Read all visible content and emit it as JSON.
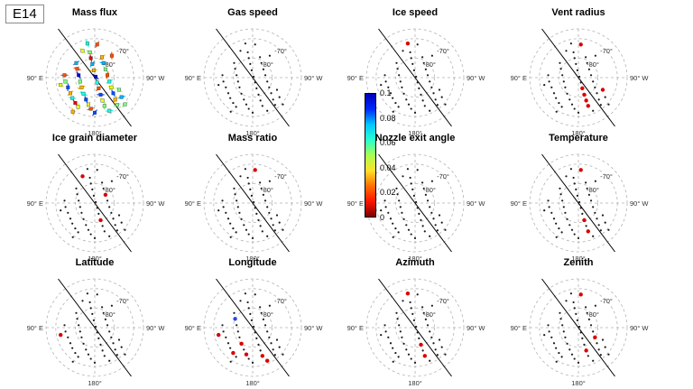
{
  "figure_label": "E14",
  "colorbar": {
    "ticks": [
      "0.1",
      "0.08",
      "0.06",
      "0.04",
      "0.02",
      "0"
    ],
    "gradient": [
      "#0000b4",
      "#0028ff",
      "#00c8ff",
      "#28ffd0",
      "#a8ff50",
      "#ffe028",
      "#ff7000",
      "#ff1400",
      "#7f0000"
    ]
  },
  "axis_labels": {
    "east": "90° E",
    "west": "90° W",
    "south": "180°",
    "lat70": "-70°",
    "lat80": "-80°"
  },
  "colors": {
    "dot": "#1a1a1a",
    "highlight": "#d90000",
    "highlight2": "#2b45e0",
    "grid": "#b3b3b3",
    "line": "#000000"
  },
  "chart_data": {
    "type": "scatter",
    "projection": "south polar azimuthal view; dashed latitude circles at -70 and -80 deg, outer dashed boundary -65 deg; 90E at left, 90W at right, 180 at bottom; solid diagonal line through the pole from upper-left to lower-right",
    "grid": "dashed gray polar grid",
    "value_range": [
      0,
      0.1
    ],
    "colorbar_ticks": [
      0,
      0.02,
      0.04,
      0.06,
      0.08,
      0.1
    ],
    "colormap": "jet reversed (0 = dark red at bottom, 0.1 = blue at top); applies to Mass flux panel markers",
    "points_xy_normalized": [
      [
        -0.62,
        -0.05
      ],
      [
        -0.6,
        0.08
      ],
      [
        -0.55,
        0.2
      ],
      [
        -0.5,
        0.32
      ],
      [
        -0.46,
        0.42
      ],
      [
        -0.4,
        0.52
      ],
      [
        -0.34,
        0.6
      ],
      [
        -0.38,
        -0.3
      ],
      [
        -0.36,
        -0.18
      ],
      [
        -0.33,
        -0.05
      ],
      [
        -0.3,
        0.08
      ],
      [
        -0.27,
        0.2
      ],
      [
        -0.23,
        0.33
      ],
      [
        -0.18,
        0.45
      ],
      [
        -0.13,
        0.55
      ],
      [
        -0.08,
        0.64
      ],
      [
        -0.1,
        -0.52
      ],
      [
        -0.08,
        -0.4
      ],
      [
        -0.05,
        -0.28
      ],
      [
        -0.02,
        -0.15
      ],
      [
        0.02,
        -0.02
      ],
      [
        0.05,
        0.1
      ],
      [
        0.08,
        0.22
      ],
      [
        0.12,
        0.35
      ],
      [
        0.16,
        0.47
      ],
      [
        0.2,
        0.58
      ],
      [
        0.15,
        -0.42
      ],
      [
        0.18,
        -0.3
      ],
      [
        0.22,
        -0.17
      ],
      [
        0.26,
        -0.05
      ],
      [
        0.3,
        0.08
      ],
      [
        0.34,
        0.2
      ],
      [
        0.38,
        0.32
      ],
      [
        0.42,
        0.45
      ],
      [
        0.46,
        0.56
      ],
      [
        -0.7,
        0.15
      ],
      [
        -0.15,
        -0.7
      ],
      [
        0.05,
        -0.68
      ],
      [
        0.55,
        0.4
      ],
      [
        0.5,
        0.25
      ],
      [
        -0.45,
        0.7
      ],
      [
        0.0,
        0.72
      ],
      [
        0.3,
        0.68
      ],
      [
        -0.25,
        -0.55
      ],
      [
        0.35,
        -0.45
      ],
      [
        0.62,
        0.55
      ]
    ],
    "mass_flux_values": [
      0.02,
      0.05,
      0.08,
      0.03,
      0.06,
      0.01,
      0.04,
      0.07,
      0.02,
      0.09,
      0.05,
      0.03,
      0.06,
      0.08,
      0.04,
      0.02,
      0.05,
      0.01,
      0.07,
      0.03,
      0.09,
      0.06,
      0.02,
      0.08,
      0.04,
      0.05,
      0.03,
      0.07,
      0.05,
      0.02,
      0.06,
      0.04,
      0.08,
      0.03,
      0.05,
      0.04,
      0.06,
      0.02,
      0.07,
      0.05,
      0.03,
      0.08,
      0.06,
      0.04,
      0.02,
      0.05
    ],
    "subplots": [
      {
        "title": "Mass flux",
        "marker_mode": "colored",
        "highlight_indices": []
      },
      {
        "title": "Gas speed",
        "marker_mode": "dots",
        "highlight_indices": []
      },
      {
        "title": "Ice speed",
        "marker_mode": "dots",
        "highlight_indices": [
          36
        ]
      },
      {
        "title": "Vent radius",
        "marker_mode": "dots",
        "highlight_indices": [
          37,
          22,
          23,
          24,
          25,
          39
        ]
      },
      {
        "title": "Ice grain diameter",
        "marker_mode": "dots",
        "highlight_indices": [
          43,
          28,
          23
        ]
      },
      {
        "title": "Mass ratio",
        "marker_mode": "dots",
        "highlight_indices": [
          37
        ]
      },
      {
        "title": "Nozzle exit angle",
        "marker_mode": "dots",
        "highlight_indices": []
      },
      {
        "title": "Temperature",
        "marker_mode": "dots",
        "highlight_indices": [
          37,
          23,
          25
        ]
      },
      {
        "title": "Latitude",
        "marker_mode": "dots",
        "highlight_indices": [
          35
        ]
      },
      {
        "title": "Longitude",
        "marker_mode": "dots",
        "highlight_indices": [
          35,
          5,
          12,
          14,
          25,
          42
        ],
        "highlight2_indices": [
          8
        ]
      },
      {
        "title": "Azimuth",
        "marker_mode": "dots",
        "highlight_indices": [
          36,
          23,
          25
        ]
      },
      {
        "title": "Zenith",
        "marker_mode": "dots",
        "highlight_indices": [
          37,
          31,
          24
        ]
      }
    ]
  }
}
